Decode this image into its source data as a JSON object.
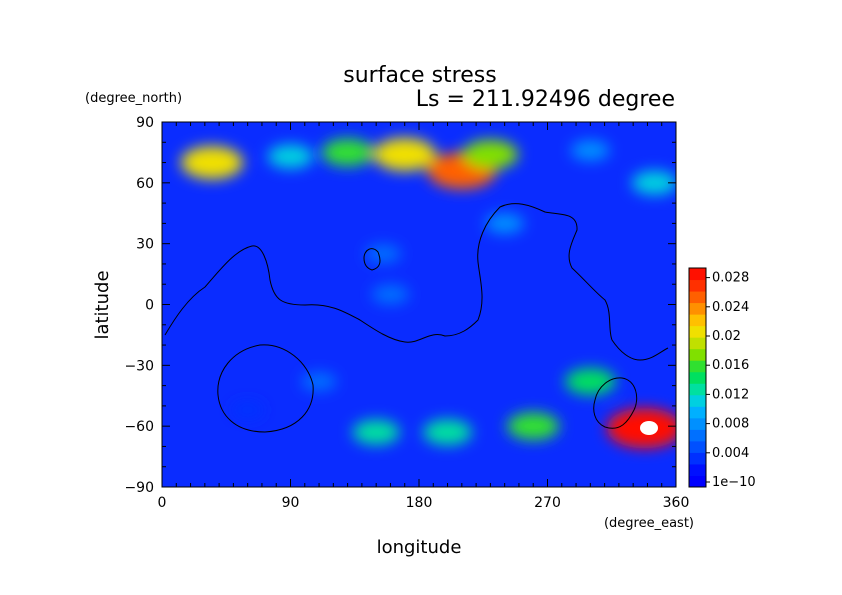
{
  "chart_data": {
    "type": "heatmap",
    "title": "surface stress",
    "subtitle": "Ls = 211.92496 degree",
    "xlabel": "longitude",
    "ylabel": "latitude",
    "xunit": "(degree_east)",
    "yunit": "(degree_north)",
    "xlim": [
      0,
      360
    ],
    "ylim": [
      -90,
      90
    ],
    "xticks": [
      "0",
      "90",
      "180",
      "270",
      "360"
    ],
    "yticks": [
      "90",
      "60",
      "30",
      "0",
      "−30",
      "−60",
      "−90"
    ],
    "colorbar": {
      "min": 0,
      "max": 0.03,
      "ticks": [
        "1e−10",
        "0.004",
        "0.008",
        "0.012",
        "0.016",
        "0.02",
        "0.024",
        "0.028"
      ],
      "colors": [
        "#0000ff",
        "#0010ff",
        "#0030ff",
        "#0050ff",
        "#0070ff",
        "#0090ff",
        "#00b0ff",
        "#00d0e0",
        "#00e0a0",
        "#00e060",
        "#30e030",
        "#80e000",
        "#c0e000",
        "#f0e000",
        "#ffc000",
        "#ff9000",
        "#ff6000",
        "#ff3000",
        "#ff1000"
      ]
    },
    "hotspots": [
      {
        "lon": 35,
        "lat": 70,
        "value": 0.022
      },
      {
        "lon": 90,
        "lat": 73,
        "value": 0.012
      },
      {
        "lon": 130,
        "lat": 75,
        "value": 0.016
      },
      {
        "lon": 170,
        "lat": 74,
        "value": 0.022
      },
      {
        "lon": 210,
        "lat": 66,
        "value": 0.026
      },
      {
        "lon": 230,
        "lat": 74,
        "value": 0.018
      },
      {
        "lon": 300,
        "lat": 76,
        "value": 0.008
      },
      {
        "lon": 345,
        "lat": 60,
        "value": 0.012
      },
      {
        "lon": 240,
        "lat": 40,
        "value": 0.008
      },
      {
        "lon": 160,
        "lat": 5,
        "value": 0.007
      },
      {
        "lon": 155,
        "lat": 25,
        "value": 0.006
      },
      {
        "lon": 300,
        "lat": -38,
        "value": 0.015
      },
      {
        "lon": 260,
        "lat": -60,
        "value": 0.016
      },
      {
        "lon": 200,
        "lat": -63,
        "value": 0.014
      },
      {
        "lon": 150,
        "lat": -63,
        "value": 0.013
      },
      {
        "lon": 110,
        "lat": -38,
        "value": 0.006
      },
      {
        "lon": 338,
        "lat": -61,
        "value": 0.03
      },
      {
        "lon": 60,
        "lat": -52,
        "value": 0.004
      }
    ]
  }
}
